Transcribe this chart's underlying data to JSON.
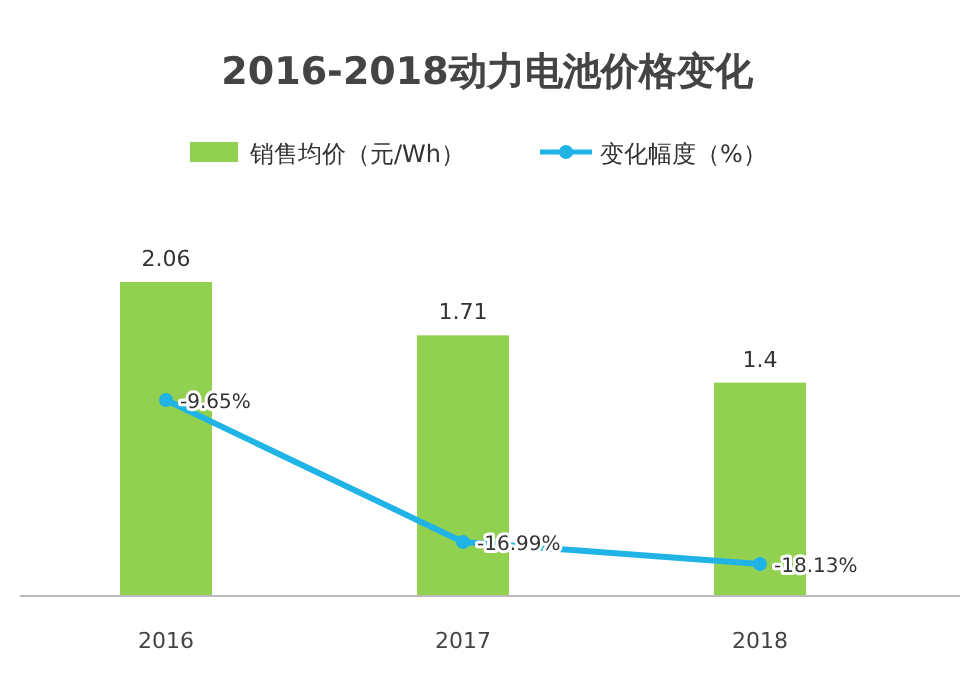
{
  "chart_data": {
    "type": "bar",
    "title": "2016-2018动力电池价格变化",
    "categories": [
      "2016",
      "2017",
      "2018"
    ],
    "series": [
      {
        "name": "销售均价（元/Wh）",
        "color": "#92d050",
        "values": [
          2.06,
          1.71,
          1.4
        ]
      },
      {
        "name": "变化幅度（%）",
        "type": "line",
        "axis": "y2",
        "color": "#1fb3e6",
        "values": [
          -9.65,
          -16.99,
          -18.13
        ],
        "value_labels": [
          "-9.65%",
          "-16.99%",
          "-18.13%"
        ]
      }
    ],
    "data_labels": true,
    "legend": "top",
    "marker": "circle",
    "grid": false
  }
}
